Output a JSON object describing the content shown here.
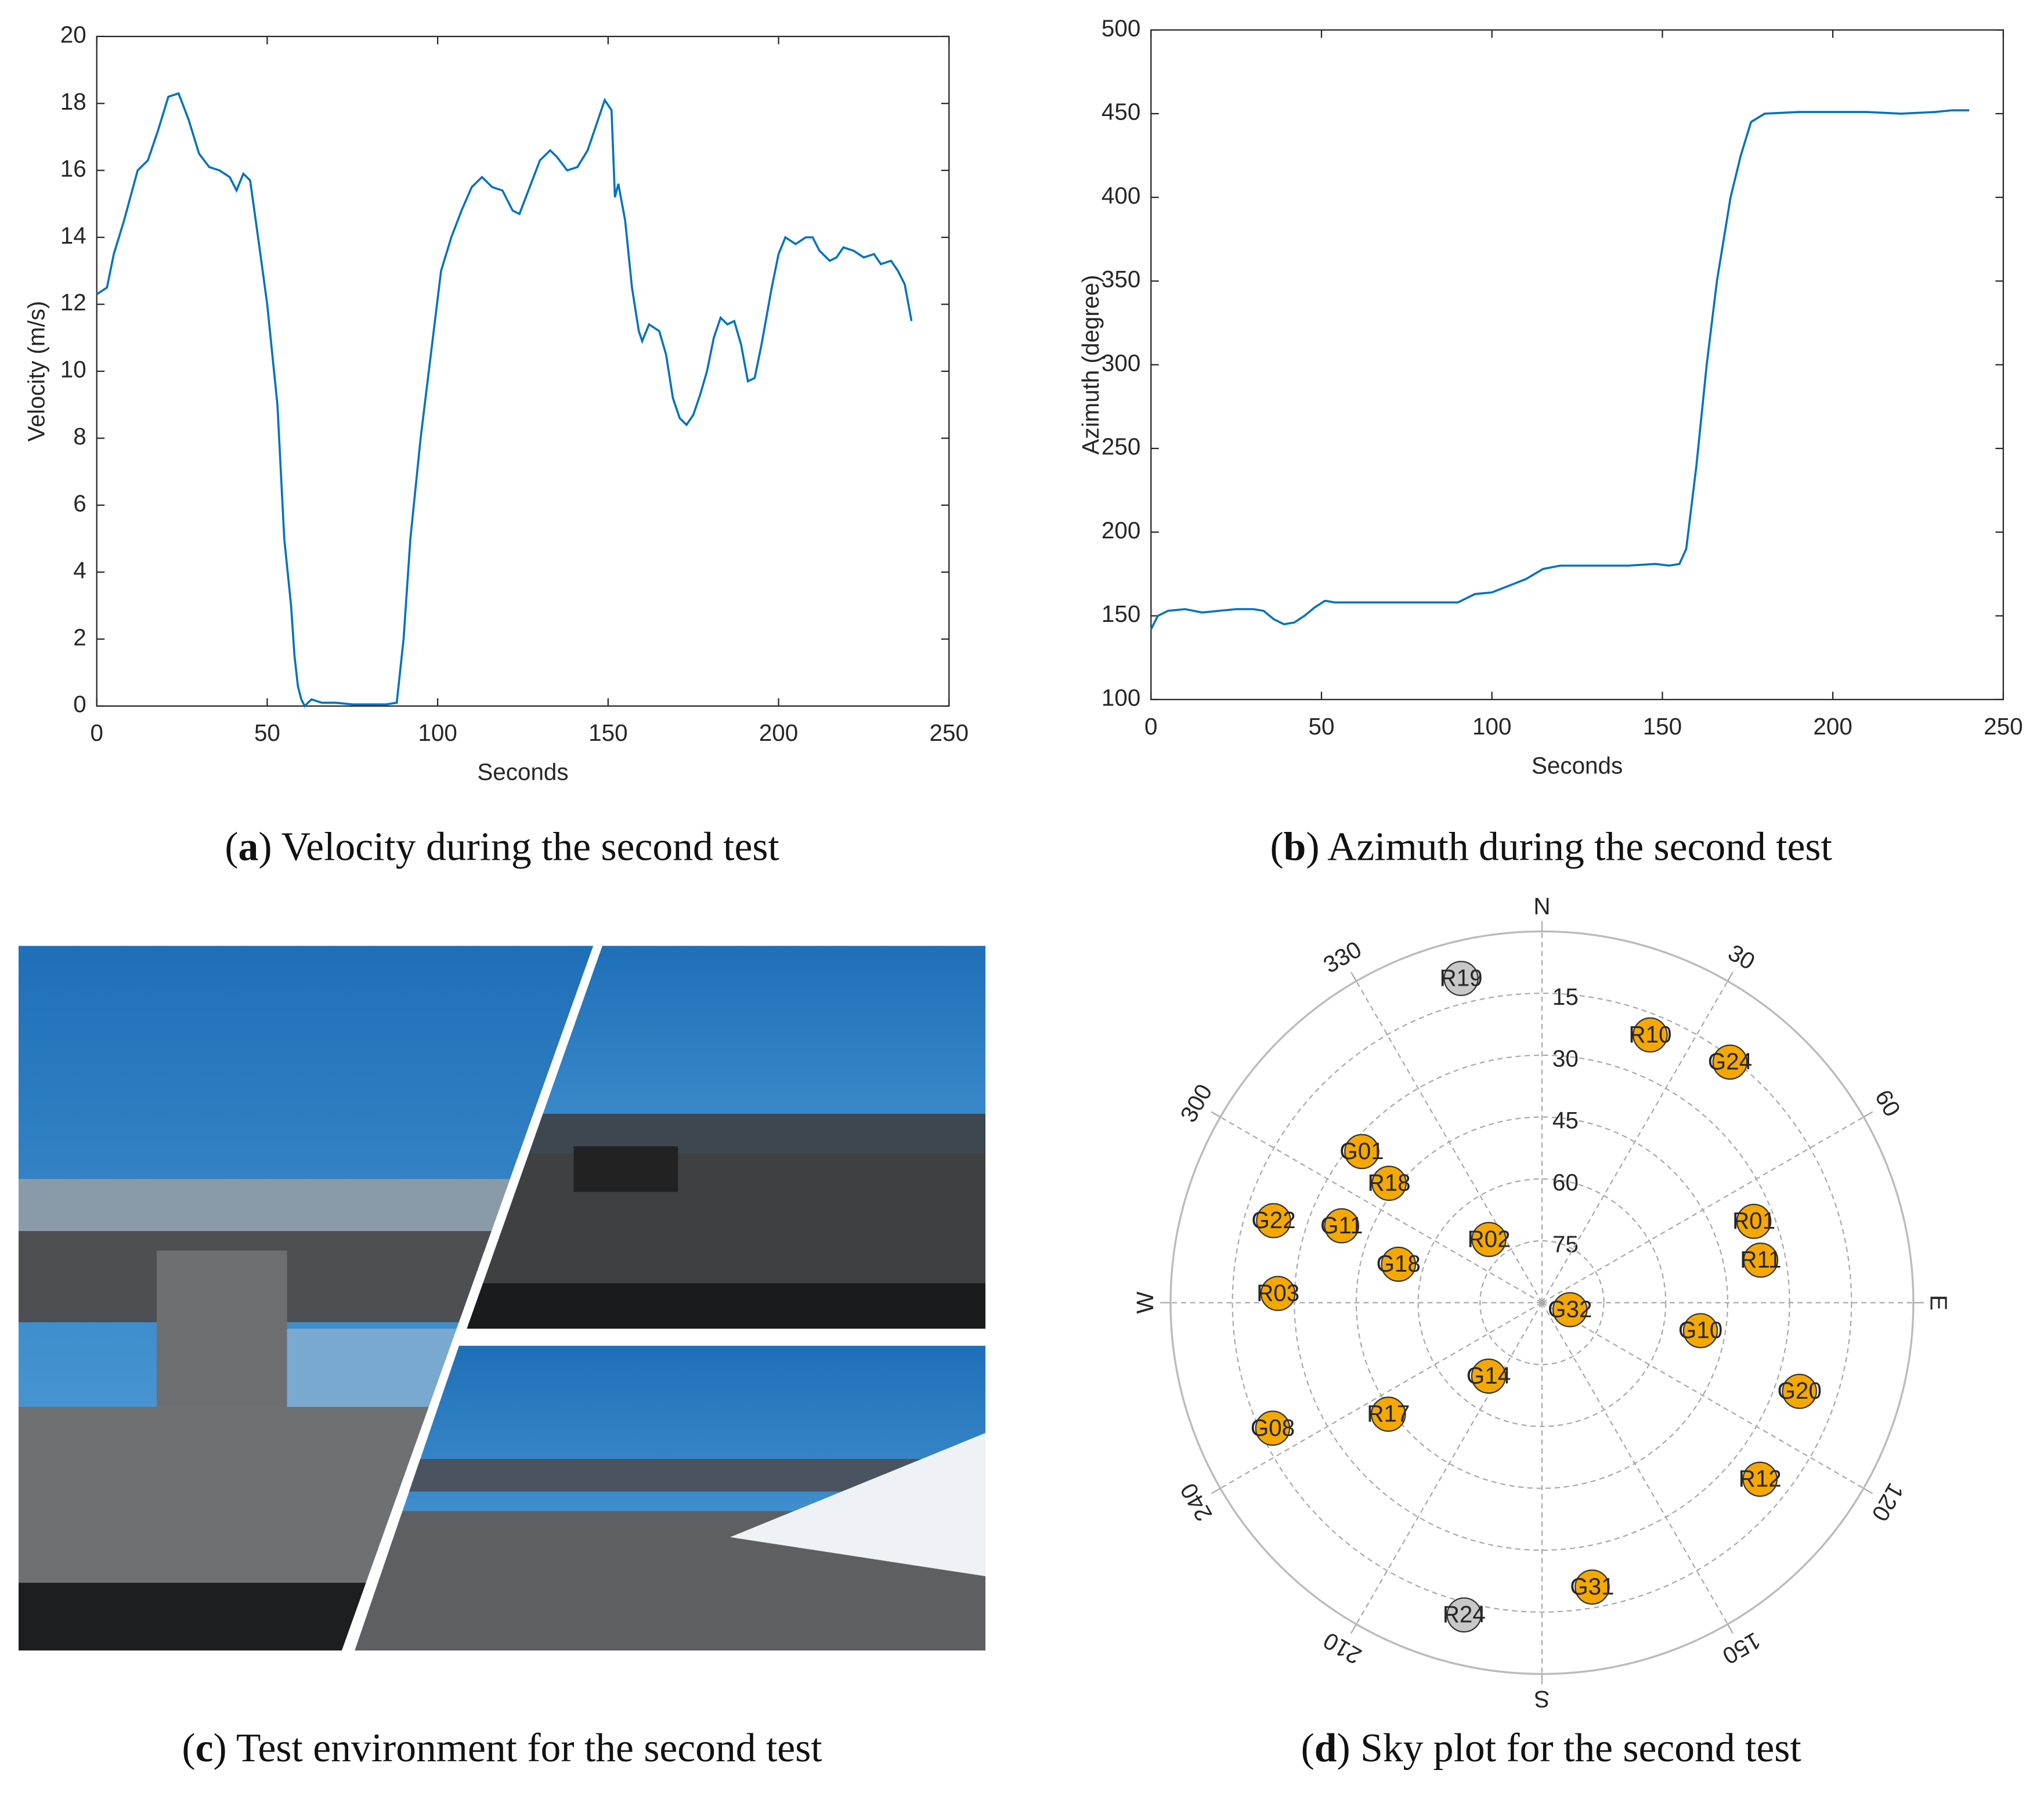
{
  "chart_data": [
    {
      "type": "line",
      "caption": [
        "(",
        "a",
        ") Velocity during the second test"
      ],
      "xlabel": "Seconds",
      "ylabel": "Velocity (m/s)",
      "color": "#0072bd",
      "xlim": [
        0,
        250
      ],
      "xticks": [
        0,
        50,
        100,
        150,
        200,
        250
      ],
      "ylim": [
        0,
        20
      ],
      "yticks": [
        0,
        2,
        4,
        6,
        8,
        10,
        12,
        14,
        16,
        18,
        20
      ],
      "x": [
        0,
        3,
        5,
        8,
        12,
        15,
        18,
        21,
        24,
        27,
        30,
        33,
        36,
        39,
        41,
        43,
        45,
        48,
        50,
        53,
        55,
        57,
        58,
        59,
        60,
        61,
        63,
        66,
        70,
        75,
        80,
        85,
        88,
        90,
        92,
        95,
        98,
        101,
        104,
        107,
        110,
        113,
        116,
        119,
        122,
        124,
        127,
        130,
        133,
        135,
        138,
        141,
        144,
        147,
        149,
        151,
        152,
        153,
        155,
        157,
        159,
        160,
        162,
        165,
        167,
        169,
        171,
        173,
        175,
        177,
        179,
        181,
        183,
        185,
        187,
        189,
        191,
        193,
        195,
        198,
        200,
        202,
        205,
        208,
        210,
        212,
        215,
        217,
        219,
        222,
        225,
        228,
        230,
        233,
        235,
        237,
        239
      ],
      "values": [
        12.3,
        12.5,
        13.5,
        14.5,
        16,
        16.3,
        17.2,
        18.2,
        18.3,
        17.5,
        16.5,
        16.1,
        16,
        15.8,
        15.4,
        15.9,
        15.7,
        13.5,
        12,
        9,
        5,
        3,
        1.5,
        0.6,
        0.2,
        0,
        0.2,
        0.1,
        0.1,
        0.05,
        0.05,
        0.05,
        0.1,
        2,
        5,
        8,
        10.5,
        13,
        14,
        14.8,
        15.5,
        15.8,
        15.5,
        15.4,
        14.8,
        14.7,
        15.5,
        16.3,
        16.6,
        16.4,
        16,
        16.1,
        16.6,
        17.5,
        18.1,
        17.8,
        15.2,
        15.6,
        14.5,
        12.5,
        11.2,
        10.9,
        11.4,
        11.2,
        10.5,
        9.2,
        8.6,
        8.4,
        8.7,
        9.3,
        10,
        11,
        11.6,
        11.4,
        11.5,
        10.8,
        9.7,
        9.8,
        10.8,
        12.5,
        13.5,
        14,
        13.8,
        14,
        14,
        13.6,
        13.3,
        13.4,
        13.7,
        13.6,
        13.4,
        13.5,
        13.2,
        13.3,
        13,
        12.6,
        11.5
      ]
    },
    {
      "type": "line",
      "caption": [
        "(",
        "b",
        ") Azimuth during the second test"
      ],
      "xlabel": "Seconds",
      "ylabel": "Azimuth (degree)",
      "color": "#0072bd",
      "xlim": [
        0,
        250
      ],
      "xticks": [
        0,
        50,
        100,
        150,
        200,
        250
      ],
      "ylim": [
        100,
        500
      ],
      "yticks": [
        100,
        150,
        200,
        250,
        300,
        350,
        400,
        450,
        500
      ],
      "x": [
        0,
        2,
        5,
        10,
        15,
        20,
        25,
        30,
        33,
        36,
        39,
        42,
        45,
        48,
        51,
        54,
        60,
        70,
        80,
        90,
        95,
        100,
        105,
        110,
        115,
        120,
        130,
        140,
        148,
        152,
        155,
        157,
        160,
        163,
        166,
        170,
        173,
        176,
        180,
        190,
        200,
        210,
        220,
        230,
        235,
        240
      ],
      "values": [
        142,
        150,
        153,
        154,
        152,
        153,
        154,
        154,
        153,
        148,
        145,
        146,
        150,
        155,
        159,
        158,
        158,
        158,
        158,
        158,
        163,
        164,
        168,
        172,
        178,
        180,
        180,
        180,
        181,
        180,
        181,
        190,
        240,
        300,
        350,
        400,
        425,
        445,
        450,
        451,
        451,
        451,
        450,
        451,
        452,
        452
      ]
    },
    {
      "type": "polar",
      "caption": [
        "(",
        "d",
        ") Sky plot for the second test"
      ],
      "elevation_lim": [
        90,
        0
      ],
      "rticks": [
        15,
        30,
        45,
        60,
        75
      ],
      "directions": [
        {
          "value": 0,
          "label": "N"
        },
        {
          "value": 90,
          "label": "E"
        },
        {
          "value": 180,
          "label": "S"
        },
        {
          "value": 270,
          "label": "W"
        }
      ],
      "angle_ticks": [
        30,
        60,
        120,
        150,
        210,
        240,
        300,
        330
      ],
      "satellites": {
        "labels": [
          "R19",
          "R10",
          "G24",
          "G01",
          "R18",
          "G22",
          "G11",
          "R02",
          "R01",
          "R11",
          "G18",
          "R03",
          "G32",
          "G10",
          "G14",
          "G20",
          "R17",
          "G08",
          "R12",
          "G31",
          "R24"
        ],
        "azimuth": [
          346,
          22,
          38,
          310,
          308,
          287,
          291,
          320,
          69,
          79,
          285,
          272,
          104,
          100,
          216,
          109,
          234,
          245,
          129,
          170,
          194
        ],
        "elevation": [
          9,
          20,
          16,
          33,
          43,
          22,
          38,
          70,
          35,
          36,
          54,
          26,
          83,
          51,
          68,
          24,
          44,
          18,
          22,
          20,
          12
        ],
        "colors": [
          "#c8c8c8",
          "#f5a800",
          "#f5a800",
          "#f5a800",
          "#f5a800",
          "#f5a800",
          "#f5a800",
          "#f5a800",
          "#f5a800",
          "#f5a800",
          "#f5a800",
          "#f5a800",
          "#f5a800",
          "#f5a800",
          "#f5a800",
          "#f5a800",
          "#f5a800",
          "#f5a800",
          "#f5a800",
          "#f5a800",
          "#c8c8c8"
        ]
      }
    }
  ],
  "photo": {
    "caption": [
      "(",
      "c",
      ") Test environment for the second test"
    ]
  }
}
